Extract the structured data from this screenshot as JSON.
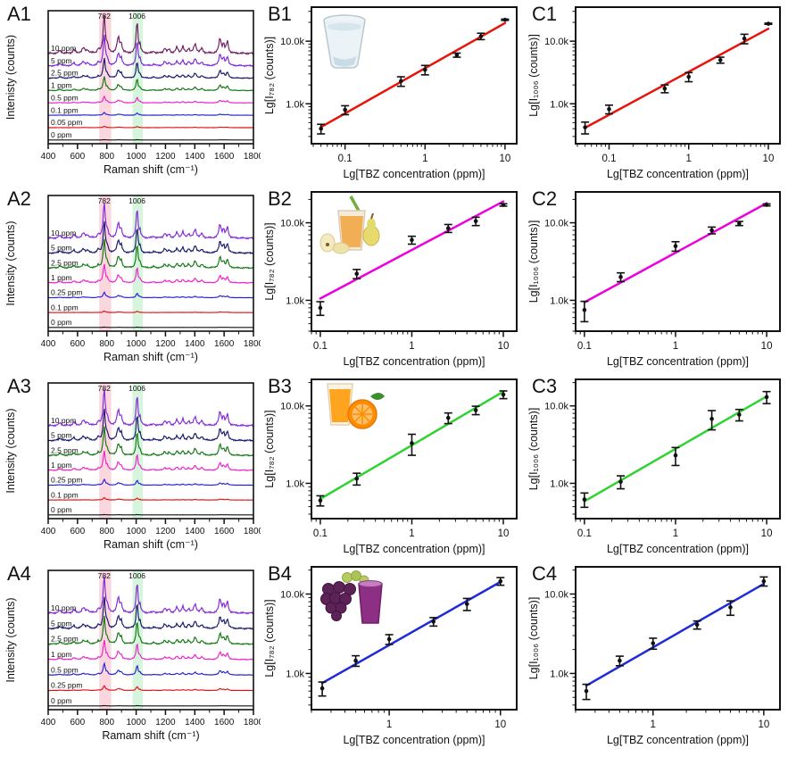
{
  "tbz_peaks": [
    [
      480,
      0.07,
      10
    ],
    [
      575,
      0.09,
      9
    ],
    [
      640,
      0.13,
      12
    ],
    [
      668,
      0.08,
      8
    ],
    [
      742,
      0.1,
      7
    ],
    [
      782,
      1.0,
      8
    ],
    [
      803,
      0.18,
      7
    ],
    [
      878,
      0.4,
      10
    ],
    [
      898,
      0.22,
      7
    ],
    [
      1006,
      0.85,
      7
    ],
    [
      1026,
      0.18,
      6
    ],
    [
      1120,
      0.05,
      8
    ],
    [
      1195,
      0.13,
      9
    ],
    [
      1225,
      0.1,
      8
    ],
    [
      1278,
      0.15,
      9
    ],
    [
      1318,
      0.17,
      8
    ],
    [
      1358,
      0.12,
      8
    ],
    [
      1402,
      0.24,
      10
    ],
    [
      1448,
      0.12,
      9
    ],
    [
      1572,
      0.38,
      9
    ],
    [
      1596,
      0.22,
      7
    ],
    [
      1622,
      0.3,
      8
    ]
  ],
  "chart_data": [
    {
      "panel_label": "A1",
      "type": "line",
      "subtype": "raman-spectra",
      "xlabel": "Raman shift (cm⁻¹)",
      "ylabel": "Intenisty (counts)",
      "xlim": [
        400,
        1800
      ],
      "xticks": [
        400,
        600,
        800,
        1000,
        1200,
        1400,
        1600,
        1800
      ],
      "highlight_bands": [
        {
          "from": 748,
          "to": 830,
          "center": 782,
          "label": "782",
          "band_color": "#f7bcc8",
          "label_color": "#8b1a1a"
        },
        {
          "from": 976,
          "to": 1046,
          "center": 1006,
          "label": "1006",
          "band_color": "#bcecc4",
          "label_color": "#222222"
        }
      ],
      "series": [
        {
          "name": "10 ppm",
          "color": "#6b1a5e",
          "rel_intensity": 1.0
        },
        {
          "name": "5 ppm",
          "color": "#7d26d9",
          "rel_intensity": 0.78
        },
        {
          "name": "2.5 ppm",
          "color": "#15156b",
          "rel_intensity": 0.5
        },
        {
          "name": "1 ppm",
          "color": "#117711",
          "rel_intensity": 0.36
        },
        {
          "name": "0.5 ppm",
          "color": "#e623cb",
          "rel_intensity": 0.17
        },
        {
          "name": "0.1 ppm",
          "color": "#2222cf",
          "rel_intensity": 0.07
        },
        {
          "name": "0.05 ppm",
          "color": "#e01111",
          "rel_intensity": 0.035
        },
        {
          "name": "0 ppm",
          "color": "#101010",
          "rel_intensity": 0.01
        }
      ]
    },
    {
      "panel_label": "B1",
      "type": "scatter",
      "subtype": "calibration",
      "xlabel": "Lg[TBZ concentration (ppm)]",
      "ylabel": "Lg[I₇₈₂ (counts)]",
      "inset_icon": "water-glass-icon",
      "line_color": "#e8140c",
      "x": [
        0.05,
        0.1,
        0.5,
        1,
        2.5,
        5,
        10
      ],
      "y": [
        400,
        800,
        2300,
        3500,
        6000,
        12000,
        22000
      ],
      "yerr": [
        70,
        130,
        400,
        600,
        450,
        1400,
        500
      ],
      "xlim": [
        0.038,
        14
      ],
      "ylim": [
        230,
        35000
      ],
      "xticks": [
        0.1,
        1,
        10
      ],
      "xtick_labels": [
        "0.1",
        "1",
        "10"
      ],
      "yticks": [
        1000,
        10000
      ],
      "ytick_labels": [
        "1.0k",
        "10.0k"
      ]
    },
    {
      "panel_label": "C1",
      "type": "scatter",
      "subtype": "calibration",
      "xlabel": "Lg[TBZ concentration (ppm)]",
      "ylabel": "Lg[I₁₀₀₆ (counts)]",
      "inset_icon": null,
      "line_color": "#e8140c",
      "x": [
        0.05,
        0.1,
        0.5,
        1,
        2.5,
        5,
        10
      ],
      "y": [
        420,
        820,
        1750,
        2700,
        5000,
        11000,
        19000
      ],
      "yerr": [
        90,
        130,
        250,
        450,
        550,
        1900,
        400
      ],
      "xlim": [
        0.038,
        14
      ],
      "ylim": [
        230,
        35000
      ],
      "xticks": [
        0.1,
        1,
        10
      ],
      "xtick_labels": [
        "0.1",
        "1",
        "10"
      ],
      "yticks": [
        1000,
        10000
      ],
      "ytick_labels": [
        "1.0k",
        "10.0k"
      ]
    },
    {
      "panel_label": "A2",
      "type": "line",
      "subtype": "raman-spectra",
      "xlabel": "Raman shift (cm⁻¹)",
      "ylabel": "Intensity (counts)",
      "xlim": [
        400,
        1800
      ],
      "xticks": [
        400,
        600,
        800,
        1000,
        1200,
        1400,
        1600,
        1800
      ],
      "highlight_bands": [
        {
          "from": 748,
          "to": 830,
          "center": 782,
          "label": "782",
          "band_color": "#f7bcc8",
          "label_color": "#8b1a1a"
        },
        {
          "from": 976,
          "to": 1046,
          "center": 1006,
          "label": "1006",
          "band_color": "#bcecc4",
          "label_color": "#222222"
        }
      ],
      "series": [
        {
          "name": "10 ppm",
          "color": "#8326d8",
          "rel_intensity": 0.92
        },
        {
          "name": "5 ppm",
          "color": "#15156b",
          "rel_intensity": 0.8
        },
        {
          "name": "2.5 ppm",
          "color": "#117711",
          "rel_intensity": 0.72
        },
        {
          "name": "1 ppm",
          "color": "#ee22cc",
          "rel_intensity": 0.48
        },
        {
          "name": "0.25 ppm",
          "color": "#2222cf",
          "rel_intensity": 0.14
        },
        {
          "name": "0.1 ppm",
          "color": "#e01111",
          "rel_intensity": 0.04
        },
        {
          "name": "0 ppm",
          "color": "#101010",
          "rel_intensity": 0.01
        }
      ]
    },
    {
      "panel_label": "B2",
      "type": "scatter",
      "subtype": "calibration",
      "xlabel": "Lg[TBZ concentration (ppm)]",
      "ylabel": "Lg[I₇₈₂ (counts)]",
      "inset_icon": "pear-juice-icon",
      "line_color": "#ee00dd",
      "x": [
        0.1,
        0.25,
        1,
        2.5,
        5,
        10
      ],
      "y": [
        800,
        2200,
        6000,
        8500,
        10500,
        17000
      ],
      "yerr": [
        160,
        300,
        700,
        1000,
        1300,
        600
      ],
      "xlim": [
        0.08,
        14
      ],
      "ylim": [
        400,
        25000
      ],
      "xticks": [
        0.1,
        1,
        10
      ],
      "xtick_labels": [
        "0.1",
        "1",
        "10"
      ],
      "yticks": [
        1000,
        10000
      ],
      "ytick_labels": [
        "1.0k",
        "10.0k"
      ]
    },
    {
      "panel_label": "C2",
      "type": "scatter",
      "subtype": "calibration",
      "xlabel": "Lg[TBZ concentration (ppm)]",
      "ylabel": "Lg[I₁₀₀₆ (counts)]",
      "inset_icon": null,
      "line_color": "#ee00dd",
      "x": [
        0.1,
        0.25,
        1,
        2.5,
        5,
        10
      ],
      "y": [
        750,
        2000,
        5000,
        8000,
        9800,
        17000
      ],
      "yerr": [
        220,
        260,
        700,
        800,
        600,
        500
      ],
      "xlim": [
        0.08,
        14
      ],
      "ylim": [
        400,
        25000
      ],
      "xticks": [
        0.1,
        1,
        10
      ],
      "xtick_labels": [
        "0.1",
        "1",
        "10"
      ],
      "yticks": [
        1000,
        10000
      ],
      "ytick_labels": [
        "1.0k",
        "10.0k"
      ]
    },
    {
      "panel_label": "A3",
      "type": "line",
      "subtype": "raman-spectra",
      "xlabel": "Raman shift (cm⁻¹)",
      "ylabel": "Intensity (counts)",
      "xlim": [
        400,
        1800
      ],
      "xticks": [
        400,
        600,
        800,
        1000,
        1200,
        1400,
        1600,
        1800
      ],
      "highlight_bands": [
        {
          "from": 748,
          "to": 830,
          "center": 782,
          "label": "782",
          "band_color": "#f7bcc8",
          "label_color": "#8b1a1a"
        },
        {
          "from": 976,
          "to": 1046,
          "center": 1006,
          "label": "1006",
          "band_color": "#bcecc4",
          "label_color": "#222222"
        }
      ],
      "series": [
        {
          "name": "10 ppm",
          "color": "#8326d8",
          "rel_intensity": 0.95
        },
        {
          "name": "5 ppm",
          "color": "#15156b",
          "rel_intensity": 0.8
        },
        {
          "name": "2.5 ppm",
          "color": "#117711",
          "rel_intensity": 0.72
        },
        {
          "name": "1 ppm",
          "color": "#ee22cc",
          "rel_intensity": 0.5
        },
        {
          "name": "0.25 ppm",
          "color": "#2222cf",
          "rel_intensity": 0.15
        },
        {
          "name": "0.1 ppm",
          "color": "#e01111",
          "rel_intensity": 0.06
        },
        {
          "name": "0 ppm",
          "color": "#101010",
          "rel_intensity": 0.01
        }
      ]
    },
    {
      "panel_label": "B3",
      "type": "scatter",
      "subtype": "calibration",
      "xlabel": "Lg[TBZ concentration (ppm)]",
      "ylabel": "Lg[I₇₈₂ (counts)]",
      "inset_icon": "orange-juice-icon",
      "line_color": "#2fd32f",
      "x": [
        0.1,
        0.25,
        1,
        2.5,
        5,
        10
      ],
      "y": [
        600,
        1150,
        3300,
        7000,
        8800,
        14000
      ],
      "yerr": [
        90,
        200,
        1000,
        1100,
        1100,
        1600
      ],
      "xlim": [
        0.08,
        14
      ],
      "ylim": [
        350,
        22000
      ],
      "xticks": [
        0.1,
        1,
        10
      ],
      "xtick_labels": [
        "0.1",
        "1",
        "10"
      ],
      "yticks": [
        1000,
        10000
      ],
      "ytick_labels": [
        "1.0k",
        "10.0k"
      ]
    },
    {
      "panel_label": "C3",
      "type": "scatter",
      "subtype": "calibration",
      "xlabel": "Lg[TBZ concentration (ppm)]",
      "ylabel": "Lg[I₁₀₀₆ (counts)]",
      "inset_icon": null,
      "line_color": "#2fd32f",
      "x": [
        0.1,
        0.25,
        1,
        2.5,
        5,
        10
      ],
      "y": [
        620,
        1050,
        2300,
        6800,
        7700,
        13000
      ],
      "yerr": [
        130,
        200,
        600,
        1900,
        1300,
        2300
      ],
      "xlim": [
        0.08,
        14
      ],
      "ylim": [
        350,
        22000
      ],
      "xticks": [
        0.1,
        1,
        10
      ],
      "xtick_labels": [
        "0.1",
        "1",
        "10"
      ],
      "yticks": [
        1000,
        10000
      ],
      "ytick_labels": [
        "1.0k",
        "10.0k"
      ]
    },
    {
      "panel_label": "A4",
      "type": "line",
      "subtype": "raman-spectra",
      "xlabel": "Ramam shift (cm⁻¹)",
      "ylabel": "Intensity (counts)",
      "xlim": [
        400,
        1800
      ],
      "xticks": [
        400,
        600,
        800,
        1000,
        1200,
        1400,
        1600,
        1800
      ],
      "highlight_bands": [
        {
          "from": 748,
          "to": 830,
          "center": 782,
          "label": "782",
          "band_color": "#f7bcc8",
          "label_color": "#8b1a1a"
        },
        {
          "from": 976,
          "to": 1046,
          "center": 1006,
          "label": "1006",
          "band_color": "#bcecc4",
          "label_color": "#222222"
        }
      ],
      "series": [
        {
          "name": "10 ppm",
          "color": "#8326d8",
          "rel_intensity": 0.95
        },
        {
          "name": "5 ppm",
          "color": "#15156b",
          "rel_intensity": 0.8
        },
        {
          "name": "2.5 ppm",
          "color": "#117711",
          "rel_intensity": 0.7
        },
        {
          "name": "1 ppm",
          "color": "#ee22cc",
          "rel_intensity": 0.5
        },
        {
          "name": "0.5 ppm",
          "color": "#2222cf",
          "rel_intensity": 0.3
        },
        {
          "name": "0.25 ppm",
          "color": "#e01111",
          "rel_intensity": 0.12
        },
        {
          "name": "0 ppm",
          "color": "#101010",
          "rel_intensity": 0.01
        }
      ]
    },
    {
      "panel_label": "B4",
      "type": "scatter",
      "subtype": "calibration",
      "xlabel": "Lg[TBZ concentration (ppm)]",
      "ylabel": "Lg[I₇₈₂ (counts)]",
      "inset_icon": "grape-juice-icon",
      "line_color": "#1f2bd8",
      "x": [
        0.25,
        0.5,
        1,
        2.5,
        5,
        10
      ],
      "y": [
        650,
        1450,
        2700,
        4500,
        7500,
        14500
      ],
      "yerr": [
        130,
        220,
        380,
        550,
        1300,
        1600
      ],
      "xlim": [
        0.2,
        14
      ],
      "ylim": [
        350,
        22000
      ],
      "xticks": [
        1,
        10
      ],
      "xtick_labels": [
        "1",
        "10"
      ],
      "yticks": [
        1000,
        10000
      ],
      "ytick_labels": [
        "1.0k",
        "10.0k"
      ]
    },
    {
      "panel_label": "C4",
      "type": "scatter",
      "subtype": "calibration",
      "xlabel": "Lg[TBZ concentration (ppm)]",
      "ylabel": "Lg[I₁₀₀₆ (counts)]",
      "inset_icon": null,
      "line_color": "#1f2bd8",
      "x": [
        0.25,
        0.5,
        1,
        2.5,
        5,
        10
      ],
      "y": [
        600,
        1450,
        2400,
        4100,
        6800,
        14500
      ],
      "yerr": [
        130,
        200,
        380,
        480,
        1400,
        1900
      ],
      "xlim": [
        0.2,
        14
      ],
      "ylim": [
        350,
        22000
      ],
      "xticks": [
        1,
        10
      ],
      "xtick_labels": [
        "1",
        "10"
      ],
      "yticks": [
        1000,
        10000
      ],
      "ytick_labels": [
        "1.0k",
        "10.0k"
      ]
    }
  ]
}
